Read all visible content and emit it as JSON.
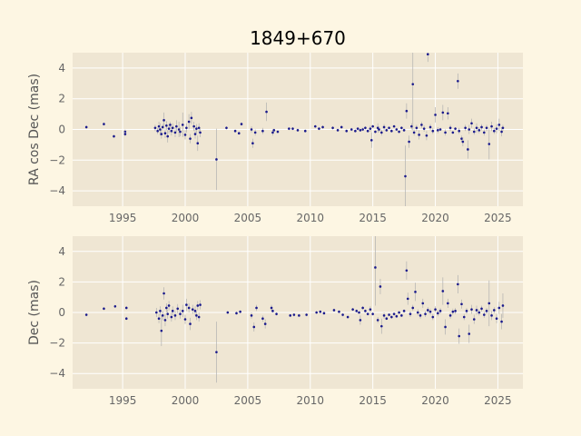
{
  "title": "1849+670",
  "colors": {
    "background": "#fdf6e3",
    "plot": "#efe6d3",
    "grid": "#ffffff",
    "point": "#1a1a8c",
    "errbar": "#b0b0b0",
    "tick_text": "#666666"
  },
  "chart_data": [
    {
      "type": "scatter",
      "ylabel": "RA cos Dec (mas)",
      "xlim": [
        1991,
        2027
      ],
      "ylim": [
        -5,
        5
      ],
      "xticks": [
        1995,
        2000,
        2005,
        2010,
        2015,
        2020,
        2025
      ],
      "yticks": [
        -4,
        -2,
        0,
        2,
        4
      ],
      "grid": true,
      "points": [
        [
          1992.1,
          0.15,
          0.1
        ],
        [
          1993.5,
          0.35,
          0.1
        ],
        [
          1994.3,
          -0.45,
          0.1
        ],
        [
          1995.2,
          -0.15,
          0.15
        ],
        [
          1995.2,
          -0.3,
          0.15
        ],
        [
          1997.6,
          0.1,
          0.2
        ],
        [
          1997.8,
          -0.1,
          0.2
        ],
        [
          1997.9,
          0.2,
          0.3
        ],
        [
          1998.0,
          0.0,
          0.4
        ],
        [
          1998.1,
          -0.3,
          0.3
        ],
        [
          1998.2,
          0.15,
          0.2
        ],
        [
          1998.3,
          0.6,
          0.5
        ],
        [
          1998.4,
          -0.25,
          0.3
        ],
        [
          1998.5,
          0.25,
          0.3
        ],
        [
          1998.6,
          -0.45,
          0.4
        ],
        [
          1998.7,
          0.05,
          0.3
        ],
        [
          1998.8,
          0.3,
          0.2
        ],
        [
          1998.9,
          -0.1,
          0.3
        ],
        [
          1999.0,
          0.1,
          0.3
        ],
        [
          1999.2,
          -0.2,
          0.3
        ],
        [
          1999.3,
          0.2,
          0.4
        ],
        [
          1999.5,
          0.0,
          0.5
        ],
        [
          1999.6,
          -0.15,
          0.3
        ],
        [
          1999.8,
          0.3,
          0.8
        ],
        [
          2000.0,
          -0.35,
          0.3
        ],
        [
          2000.1,
          0.1,
          0.3
        ],
        [
          2000.3,
          0.5,
          0.5
        ],
        [
          2000.4,
          -0.6,
          0.3
        ],
        [
          2000.5,
          0.75,
          0.4
        ],
        [
          2000.7,
          0.2,
          0.3
        ],
        [
          2000.8,
          -0.3,
          0.3
        ],
        [
          2000.9,
          0.05,
          0.3
        ],
        [
          2001.0,
          -0.9,
          0.5
        ],
        [
          2001.1,
          0.1,
          0.3
        ],
        [
          2001.2,
          -0.2,
          0.3
        ],
        [
          2002.5,
          -1.95,
          2.0
        ],
        [
          2003.3,
          0.1,
          0.1
        ],
        [
          2004.0,
          -0.1,
          0.1
        ],
        [
          2004.3,
          -0.25,
          0.1
        ],
        [
          2004.5,
          0.35,
          0.1
        ],
        [
          2005.3,
          0.0,
          0.2
        ],
        [
          2005.4,
          -0.9,
          0.3
        ],
        [
          2005.6,
          -0.2,
          0.2
        ],
        [
          2006.2,
          -0.1,
          0.2
        ],
        [
          2006.5,
          1.15,
          0.6
        ],
        [
          2007.0,
          -0.2,
          0.2
        ],
        [
          2007.1,
          -0.05,
          0.1
        ],
        [
          2007.4,
          -0.15,
          0.1
        ],
        [
          2008.3,
          0.05,
          0.1
        ],
        [
          2008.6,
          0.05,
          0.1
        ],
        [
          2009.0,
          -0.05,
          0.1
        ],
        [
          2009.6,
          -0.1,
          0.1
        ],
        [
          2010.4,
          0.2,
          0.1
        ],
        [
          2010.7,
          0.05,
          0.1
        ],
        [
          2011.0,
          0.15,
          0.1
        ],
        [
          2011.8,
          0.1,
          0.1
        ],
        [
          2012.2,
          -0.05,
          0.1
        ],
        [
          2012.5,
          0.15,
          0.1
        ],
        [
          2012.9,
          -0.1,
          0.1
        ],
        [
          2013.3,
          0.0,
          0.1
        ],
        [
          2013.6,
          -0.1,
          0.1
        ],
        [
          2013.8,
          0.05,
          0.1
        ],
        [
          2014.0,
          -0.05,
          0.1
        ],
        [
          2014.2,
          0.0,
          0.1
        ],
        [
          2014.4,
          0.1,
          0.1
        ],
        [
          2014.6,
          -0.1,
          0.1
        ],
        [
          2014.8,
          0.05,
          0.2
        ],
        [
          2014.9,
          -0.7,
          0.5
        ],
        [
          2015.0,
          0.2,
          0.1
        ],
        [
          2015.2,
          -0.15,
          0.1
        ],
        [
          2015.4,
          0.1,
          0.3
        ],
        [
          2015.5,
          0.0,
          0.2
        ],
        [
          2015.7,
          -0.2,
          0.2
        ],
        [
          2015.9,
          0.15,
          0.2
        ],
        [
          2016.1,
          -0.05,
          0.1
        ],
        [
          2016.3,
          0.1,
          0.1
        ],
        [
          2016.5,
          -0.1,
          0.1
        ],
        [
          2016.7,
          0.2,
          0.1
        ],
        [
          2016.9,
          0.0,
          0.1
        ],
        [
          2017.1,
          -0.15,
          0.1
        ],
        [
          2017.3,
          0.1,
          0.1
        ],
        [
          2017.5,
          -0.05,
          0.1
        ],
        [
          2017.6,
          -3.05,
          2.0
        ],
        [
          2017.7,
          1.2,
          0.5
        ],
        [
          2017.9,
          -0.8,
          0.4
        ],
        [
          2018.1,
          0.2,
          0.2
        ],
        [
          2018.2,
          2.95,
          3.0
        ],
        [
          2018.3,
          -0.2,
          0.2
        ],
        [
          2018.5,
          0.1,
          0.2
        ],
        [
          2018.7,
          -0.35,
          0.3
        ],
        [
          2018.9,
          0.3,
          0.2
        ],
        [
          2019.1,
          0.05,
          0.2
        ],
        [
          2019.3,
          -0.4,
          0.3
        ],
        [
          2019.4,
          4.9,
          0.5
        ],
        [
          2019.6,
          0.15,
          0.2
        ],
        [
          2019.8,
          -0.1,
          0.2
        ],
        [
          2020.0,
          0.95,
          0.5
        ],
        [
          2020.2,
          -0.05,
          0.2
        ],
        [
          2020.4,
          0.0,
          0.1
        ],
        [
          2020.6,
          1.1,
          0.5
        ],
        [
          2020.8,
          -0.2,
          0.2
        ],
        [
          2021.0,
          1.05,
          0.4
        ],
        [
          2021.2,
          0.1,
          0.2
        ],
        [
          2021.4,
          -0.2,
          0.1
        ],
        [
          2021.6,
          0.05,
          0.1
        ],
        [
          2021.8,
          3.15,
          0.5
        ],
        [
          2021.9,
          -0.1,
          0.2
        ],
        [
          2022.1,
          -0.6,
          0.2
        ],
        [
          2022.2,
          -0.8,
          0.3
        ],
        [
          2022.4,
          0.1,
          0.2
        ],
        [
          2022.6,
          -1.3,
          0.6
        ],
        [
          2022.7,
          0.0,
          0.3
        ],
        [
          2022.9,
          0.4,
          0.3
        ],
        [
          2023.1,
          -0.15,
          0.2
        ],
        [
          2023.3,
          0.1,
          0.3
        ],
        [
          2023.5,
          -0.05,
          0.2
        ],
        [
          2023.7,
          0.15,
          0.2
        ],
        [
          2023.9,
          -0.2,
          0.2
        ],
        [
          2024.1,
          0.1,
          0.2
        ],
        [
          2024.3,
          -0.95,
          1.0
        ],
        [
          2024.5,
          0.2,
          0.3
        ],
        [
          2024.7,
          -0.1,
          0.2
        ],
        [
          2024.9,
          0.05,
          0.3
        ],
        [
          2025.1,
          0.3,
          0.4
        ],
        [
          2025.3,
          -0.15,
          0.3
        ],
        [
          2025.4,
          0.1,
          0.2
        ]
      ]
    },
    {
      "type": "scatter",
      "ylabel": "Dec (mas)",
      "xlim": [
        1991,
        2027
      ],
      "ylim": [
        -5,
        5
      ],
      "xticks": [
        1995,
        2000,
        2005,
        2010,
        2015,
        2020,
        2025
      ],
      "yticks": [
        -4,
        -2,
        0,
        2,
        4
      ],
      "grid": true,
      "points": [
        [
          1992.1,
          -0.15,
          0.1
        ],
        [
          1993.5,
          0.25,
          0.1
        ],
        [
          1994.4,
          0.4,
          0.1
        ],
        [
          1995.3,
          0.3,
          0.1
        ],
        [
          1995.3,
          -0.4,
          0.1
        ],
        [
          1997.7,
          0.0,
          0.3
        ],
        [
          1997.9,
          -0.4,
          0.3
        ],
        [
          1998.0,
          0.1,
          0.3
        ],
        [
          1998.1,
          -1.2,
          1.0
        ],
        [
          1998.2,
          -0.2,
          0.3
        ],
        [
          1998.3,
          1.25,
          0.4
        ],
        [
          1998.4,
          -0.5,
          0.4
        ],
        [
          1998.5,
          0.3,
          0.3
        ],
        [
          1998.6,
          -0.1,
          0.3
        ],
        [
          1998.7,
          0.45,
          0.3
        ],
        [
          1998.9,
          -0.3,
          0.3
        ],
        [
          1999.0,
          0.1,
          0.3
        ],
        [
          1999.2,
          -0.2,
          0.3
        ],
        [
          1999.4,
          0.25,
          0.3
        ],
        [
          1999.6,
          -0.1,
          0.3
        ],
        [
          1999.8,
          0.1,
          0.4
        ],
        [
          2000.0,
          -0.45,
          0.3
        ],
        [
          2000.1,
          0.5,
          0.4
        ],
        [
          2000.3,
          0.3,
          0.3
        ],
        [
          2000.4,
          -0.75,
          0.4
        ],
        [
          2000.6,
          0.2,
          0.3
        ],
        [
          2000.8,
          0.1,
          0.3
        ],
        [
          2000.9,
          -0.2,
          0.3
        ],
        [
          2001.0,
          0.45,
          0.3
        ],
        [
          2001.1,
          -0.3,
          0.3
        ],
        [
          2001.2,
          0.5,
          0.3
        ],
        [
          2002.5,
          -2.6,
          2.0
        ],
        [
          2003.4,
          0.0,
          0.1
        ],
        [
          2004.1,
          -0.05,
          0.1
        ],
        [
          2004.4,
          0.05,
          0.1
        ],
        [
          2005.3,
          -0.2,
          0.2
        ],
        [
          2005.5,
          -0.95,
          0.3
        ],
        [
          2005.7,
          0.3,
          0.2
        ],
        [
          2006.2,
          -0.4,
          0.2
        ],
        [
          2006.4,
          -0.75,
          0.3
        ],
        [
          2006.9,
          0.3,
          0.2
        ],
        [
          2007.0,
          0.1,
          0.1
        ],
        [
          2007.3,
          -0.1,
          0.1
        ],
        [
          2008.4,
          -0.2,
          0.1
        ],
        [
          2008.7,
          -0.15,
          0.1
        ],
        [
          2009.1,
          -0.2,
          0.1
        ],
        [
          2009.7,
          -0.15,
          0.1
        ],
        [
          2010.5,
          0.0,
          0.1
        ],
        [
          2010.8,
          0.05,
          0.1
        ],
        [
          2011.1,
          -0.05,
          0.1
        ],
        [
          2011.9,
          0.15,
          0.1
        ],
        [
          2012.3,
          0.05,
          0.1
        ],
        [
          2012.6,
          -0.15,
          0.1
        ],
        [
          2013.0,
          -0.3,
          0.1
        ],
        [
          2013.4,
          0.2,
          0.1
        ],
        [
          2013.7,
          0.1,
          0.1
        ],
        [
          2013.9,
          0.0,
          0.1
        ],
        [
          2014.0,
          -0.5,
          0.3
        ],
        [
          2014.2,
          0.3,
          0.1
        ],
        [
          2014.4,
          0.1,
          0.1
        ],
        [
          2014.6,
          -0.1,
          0.1
        ],
        [
          2014.8,
          0.2,
          0.2
        ],
        [
          2015.0,
          -0.1,
          0.1
        ],
        [
          2015.2,
          2.95,
          2.5
        ],
        [
          2015.4,
          -0.5,
          0.2
        ],
        [
          2015.6,
          1.7,
          0.5
        ],
        [
          2015.7,
          -0.9,
          0.5
        ],
        [
          2015.9,
          -0.2,
          0.2
        ],
        [
          2016.1,
          -0.4,
          0.1
        ],
        [
          2016.3,
          -0.15,
          0.1
        ],
        [
          2016.5,
          -0.3,
          0.1
        ],
        [
          2016.7,
          -0.1,
          0.1
        ],
        [
          2016.9,
          -0.25,
          0.1
        ],
        [
          2017.1,
          0.0,
          0.1
        ],
        [
          2017.3,
          -0.2,
          0.1
        ],
        [
          2017.5,
          0.1,
          0.1
        ],
        [
          2017.7,
          2.75,
          0.6
        ],
        [
          2017.8,
          0.9,
          0.4
        ],
        [
          2018.0,
          -0.1,
          0.2
        ],
        [
          2018.2,
          0.3,
          0.2
        ],
        [
          2018.4,
          1.35,
          0.6
        ],
        [
          2018.6,
          0.0,
          0.2
        ],
        [
          2018.8,
          -0.2,
          0.2
        ],
        [
          2019.0,
          0.6,
          0.3
        ],
        [
          2019.2,
          -0.1,
          0.2
        ],
        [
          2019.4,
          0.15,
          0.2
        ],
        [
          2019.6,
          0.05,
          0.2
        ],
        [
          2019.8,
          -0.3,
          0.2
        ],
        [
          2020.0,
          0.2,
          0.2
        ],
        [
          2020.2,
          -0.05,
          0.2
        ],
        [
          2020.4,
          0.1,
          0.2
        ],
        [
          2020.6,
          1.4,
          0.9
        ],
        [
          2020.8,
          -0.95,
          0.5
        ],
        [
          2021.0,
          0.6,
          0.3
        ],
        [
          2021.2,
          -0.2,
          0.2
        ],
        [
          2021.4,
          0.05,
          0.2
        ],
        [
          2021.6,
          0.1,
          0.2
        ],
        [
          2021.8,
          1.85,
          0.6
        ],
        [
          2021.9,
          -1.55,
          0.5
        ],
        [
          2022.1,
          0.55,
          0.3
        ],
        [
          2022.3,
          -0.3,
          0.2
        ],
        [
          2022.5,
          0.1,
          0.2
        ],
        [
          2022.7,
          -1.4,
          0.6
        ],
        [
          2022.9,
          0.2,
          0.3
        ],
        [
          2023.1,
          -0.45,
          0.3
        ],
        [
          2023.3,
          0.15,
          0.3
        ],
        [
          2023.5,
          0.0,
          0.2
        ],
        [
          2023.7,
          0.25,
          0.2
        ],
        [
          2023.9,
          -0.15,
          0.2
        ],
        [
          2024.1,
          0.1,
          0.2
        ],
        [
          2024.3,
          0.6,
          1.5
        ],
        [
          2024.5,
          -0.2,
          0.3
        ],
        [
          2024.7,
          0.15,
          0.2
        ],
        [
          2024.9,
          -0.4,
          0.3
        ],
        [
          2025.1,
          0.3,
          0.4
        ],
        [
          2025.3,
          -0.6,
          0.5
        ],
        [
          2025.4,
          0.45,
          0.8
        ]
      ]
    }
  ]
}
